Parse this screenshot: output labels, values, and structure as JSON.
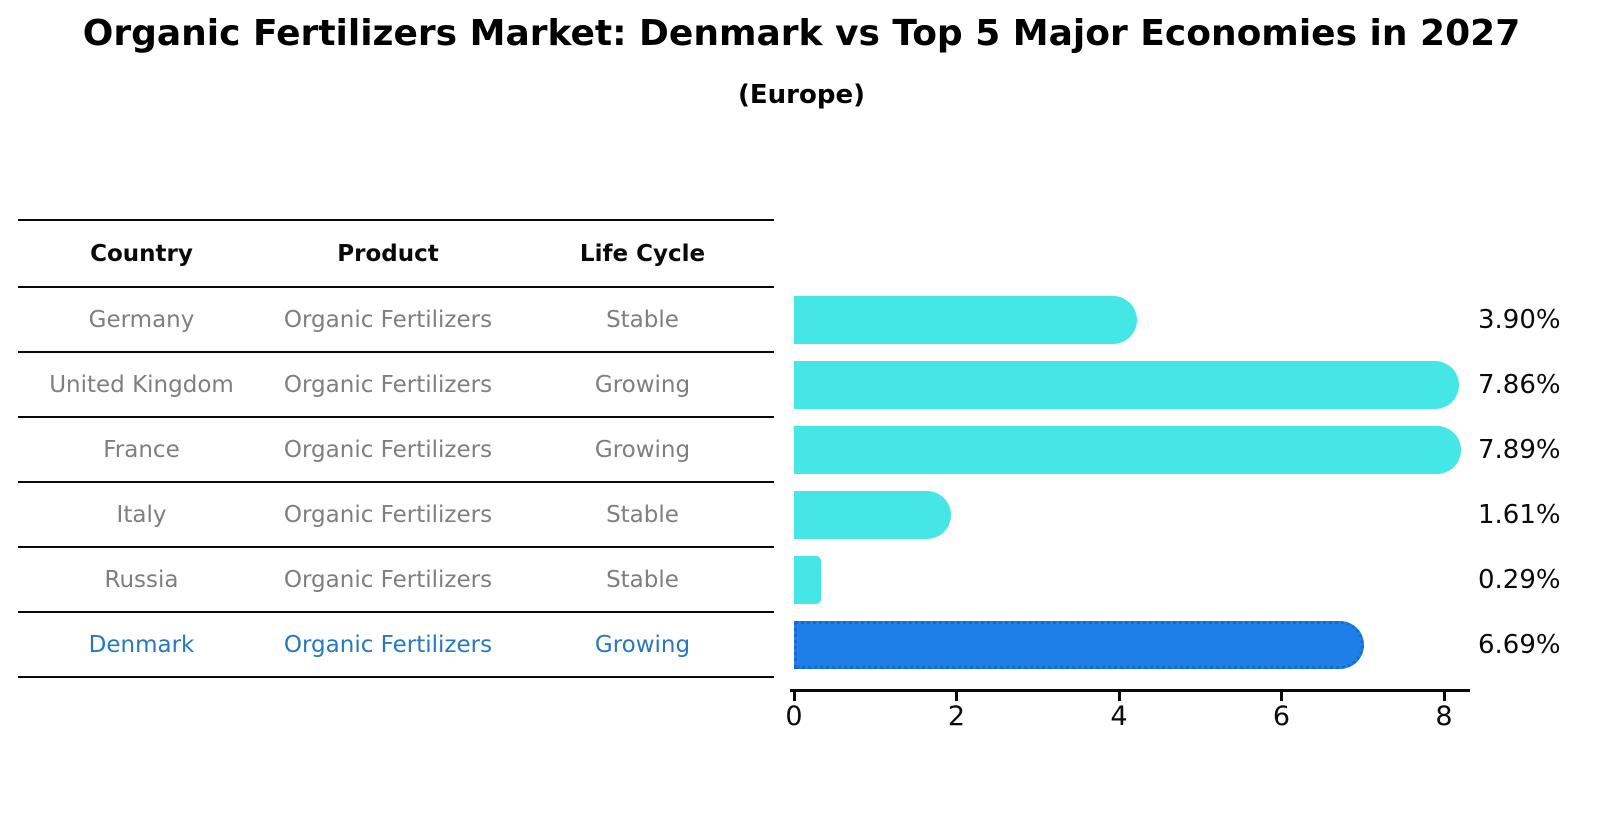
{
  "header": {
    "title": "Organic Fertilizers Market: Denmark vs Top 5 Major Economies in 2027",
    "subtitle": "(Europe)"
  },
  "table": {
    "headers": [
      "Country",
      "Product",
      "Life Cycle"
    ],
    "rows": [
      {
        "country": "Germany",
        "product": "Organic Fertilizers",
        "life_cycle": "Stable",
        "highlight": false
      },
      {
        "country": "United Kingdom",
        "product": "Organic Fertilizers",
        "life_cycle": "Growing",
        "highlight": false
      },
      {
        "country": "France",
        "product": "Organic Fertilizers",
        "life_cycle": "Growing",
        "highlight": false
      },
      {
        "country": "Italy",
        "product": "Organic Fertilizers",
        "life_cycle": "Stable",
        "highlight": false
      },
      {
        "country": "Russia",
        "product": "Organic Fertilizers",
        "life_cycle": "Stable",
        "highlight": false
      },
      {
        "country": "Denmark",
        "product": "Organic Fertilizers",
        "life_cycle": "Growing",
        "highlight": true
      }
    ]
  },
  "chart_data": {
    "type": "bar",
    "orientation": "horizontal",
    "title": "Organic Fertilizers Market: Denmark vs Top 5 Major Economies in 2027",
    "subtitle": "(Europe)",
    "categories": [
      "Germany",
      "United Kingdom",
      "France",
      "Italy",
      "Russia",
      "Denmark"
    ],
    "values": [
      3.9,
      7.86,
      7.89,
      1.61,
      0.29,
      6.69
    ],
    "value_labels": [
      "3.90%",
      "7.86%",
      "7.89%",
      "1.61%",
      "0.29%",
      "6.69%"
    ],
    "unit": "%",
    "xlim": [
      0,
      8.35
    ],
    "x_ticks": [
      0,
      2,
      4,
      6,
      8
    ],
    "grid": false,
    "legend": false,
    "bar_color": "#45e6e6",
    "highlight_color": "#1e7fe8",
    "highlight_border_color": "#156bd2",
    "highlighted_category": "Denmark",
    "row_text_color": "#7f7f7f",
    "highlight_text_color": "#2878be"
  }
}
